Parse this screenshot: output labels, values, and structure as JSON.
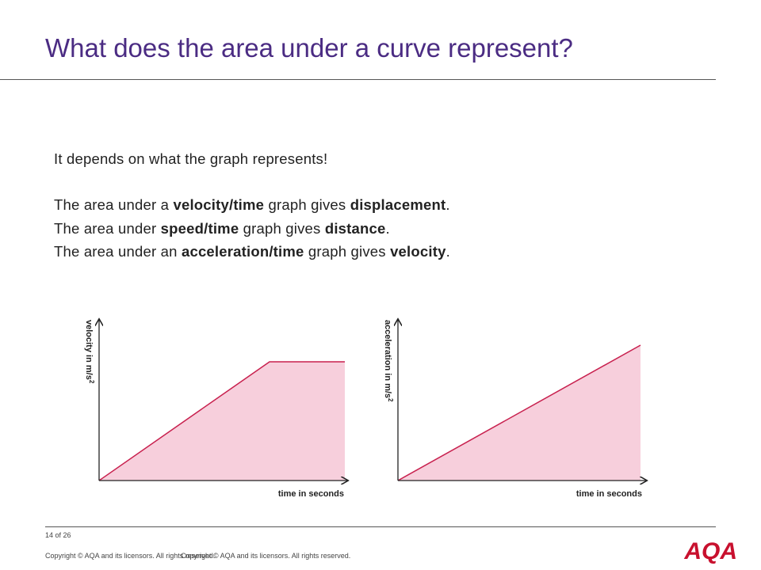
{
  "header": {
    "title": "What does the area under a curve represent?"
  },
  "body": {
    "intro": "It depends on what the graph represents!",
    "lines": [
      [
        "The area under a ",
        "velocity/time",
        " graph gives ",
        "displacement",
        "."
      ],
      [
        "The area under ",
        "speed/time",
        " graph gives ",
        "distance",
        "."
      ],
      [
        "The area under an ",
        "acceleration/time",
        " graph gives ",
        "velocity",
        "."
      ]
    ]
  },
  "graphs": [
    {
      "y_label": "velocity in m/s",
      "y_label_sup": "2",
      "x_label": "time in seconds"
    },
    {
      "y_label": "acceleration in m/s",
      "y_label_sup": "2",
      "x_label": "time in seconds"
    }
  ],
  "footer": {
    "page": "14 of 26",
    "copyright": [
      "Copyright © AQA and its licensors. All rights reserved.",
      "Copyright © AQA and its licensors. All rights reserved."
    ],
    "logo": "AQA"
  }
}
